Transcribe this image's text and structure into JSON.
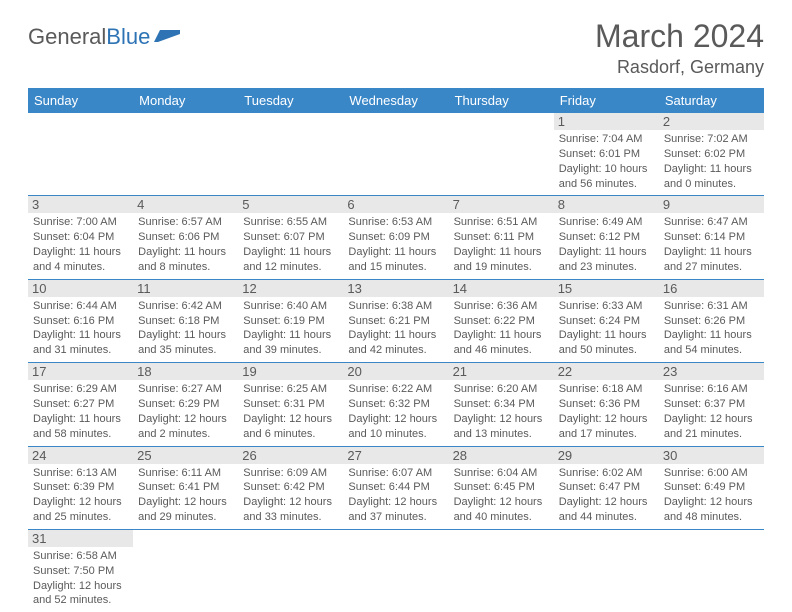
{
  "logo": {
    "text1": "General",
    "text2": "Blue"
  },
  "title": "March 2024",
  "location": "Rasdorf, Germany",
  "colors": {
    "header_bg": "#3a87c8",
    "header_text": "#ffffff",
    "border": "#3a87c8",
    "daynum_bg": "#e8e8e8",
    "text": "#5a5a5a",
    "logo_blue": "#2e74b5"
  },
  "dayHeaders": [
    "Sunday",
    "Monday",
    "Tuesday",
    "Wednesday",
    "Thursday",
    "Friday",
    "Saturday"
  ],
  "weeks": [
    [
      null,
      null,
      null,
      null,
      null,
      {
        "n": "1",
        "sr": "7:04 AM",
        "ss": "6:01 PM",
        "dl": "10 hours and 56 minutes."
      },
      {
        "n": "2",
        "sr": "7:02 AM",
        "ss": "6:02 PM",
        "dl": "11 hours and 0 minutes."
      }
    ],
    [
      {
        "n": "3",
        "sr": "7:00 AM",
        "ss": "6:04 PM",
        "dl": "11 hours and 4 minutes."
      },
      {
        "n": "4",
        "sr": "6:57 AM",
        "ss": "6:06 PM",
        "dl": "11 hours and 8 minutes."
      },
      {
        "n": "5",
        "sr": "6:55 AM",
        "ss": "6:07 PM",
        "dl": "11 hours and 12 minutes."
      },
      {
        "n": "6",
        "sr": "6:53 AM",
        "ss": "6:09 PM",
        "dl": "11 hours and 15 minutes."
      },
      {
        "n": "7",
        "sr": "6:51 AM",
        "ss": "6:11 PM",
        "dl": "11 hours and 19 minutes."
      },
      {
        "n": "8",
        "sr": "6:49 AM",
        "ss": "6:12 PM",
        "dl": "11 hours and 23 minutes."
      },
      {
        "n": "9",
        "sr": "6:47 AM",
        "ss": "6:14 PM",
        "dl": "11 hours and 27 minutes."
      }
    ],
    [
      {
        "n": "10",
        "sr": "6:44 AM",
        "ss": "6:16 PM",
        "dl": "11 hours and 31 minutes."
      },
      {
        "n": "11",
        "sr": "6:42 AM",
        "ss": "6:18 PM",
        "dl": "11 hours and 35 minutes."
      },
      {
        "n": "12",
        "sr": "6:40 AM",
        "ss": "6:19 PM",
        "dl": "11 hours and 39 minutes."
      },
      {
        "n": "13",
        "sr": "6:38 AM",
        "ss": "6:21 PM",
        "dl": "11 hours and 42 minutes."
      },
      {
        "n": "14",
        "sr": "6:36 AM",
        "ss": "6:22 PM",
        "dl": "11 hours and 46 minutes."
      },
      {
        "n": "15",
        "sr": "6:33 AM",
        "ss": "6:24 PM",
        "dl": "11 hours and 50 minutes."
      },
      {
        "n": "16",
        "sr": "6:31 AM",
        "ss": "6:26 PM",
        "dl": "11 hours and 54 minutes."
      }
    ],
    [
      {
        "n": "17",
        "sr": "6:29 AM",
        "ss": "6:27 PM",
        "dl": "11 hours and 58 minutes."
      },
      {
        "n": "18",
        "sr": "6:27 AM",
        "ss": "6:29 PM",
        "dl": "12 hours and 2 minutes."
      },
      {
        "n": "19",
        "sr": "6:25 AM",
        "ss": "6:31 PM",
        "dl": "12 hours and 6 minutes."
      },
      {
        "n": "20",
        "sr": "6:22 AM",
        "ss": "6:32 PM",
        "dl": "12 hours and 10 minutes."
      },
      {
        "n": "21",
        "sr": "6:20 AM",
        "ss": "6:34 PM",
        "dl": "12 hours and 13 minutes."
      },
      {
        "n": "22",
        "sr": "6:18 AM",
        "ss": "6:36 PM",
        "dl": "12 hours and 17 minutes."
      },
      {
        "n": "23",
        "sr": "6:16 AM",
        "ss": "6:37 PM",
        "dl": "12 hours and 21 minutes."
      }
    ],
    [
      {
        "n": "24",
        "sr": "6:13 AM",
        "ss": "6:39 PM",
        "dl": "12 hours and 25 minutes."
      },
      {
        "n": "25",
        "sr": "6:11 AM",
        "ss": "6:41 PM",
        "dl": "12 hours and 29 minutes."
      },
      {
        "n": "26",
        "sr": "6:09 AM",
        "ss": "6:42 PM",
        "dl": "12 hours and 33 minutes."
      },
      {
        "n": "27",
        "sr": "6:07 AM",
        "ss": "6:44 PM",
        "dl": "12 hours and 37 minutes."
      },
      {
        "n": "28",
        "sr": "6:04 AM",
        "ss": "6:45 PM",
        "dl": "12 hours and 40 minutes."
      },
      {
        "n": "29",
        "sr": "6:02 AM",
        "ss": "6:47 PM",
        "dl": "12 hours and 44 minutes."
      },
      {
        "n": "30",
        "sr": "6:00 AM",
        "ss": "6:49 PM",
        "dl": "12 hours and 48 minutes."
      }
    ],
    [
      {
        "n": "31",
        "sr": "6:58 AM",
        "ss": "7:50 PM",
        "dl": "12 hours and 52 minutes."
      },
      null,
      null,
      null,
      null,
      null,
      null
    ]
  ]
}
